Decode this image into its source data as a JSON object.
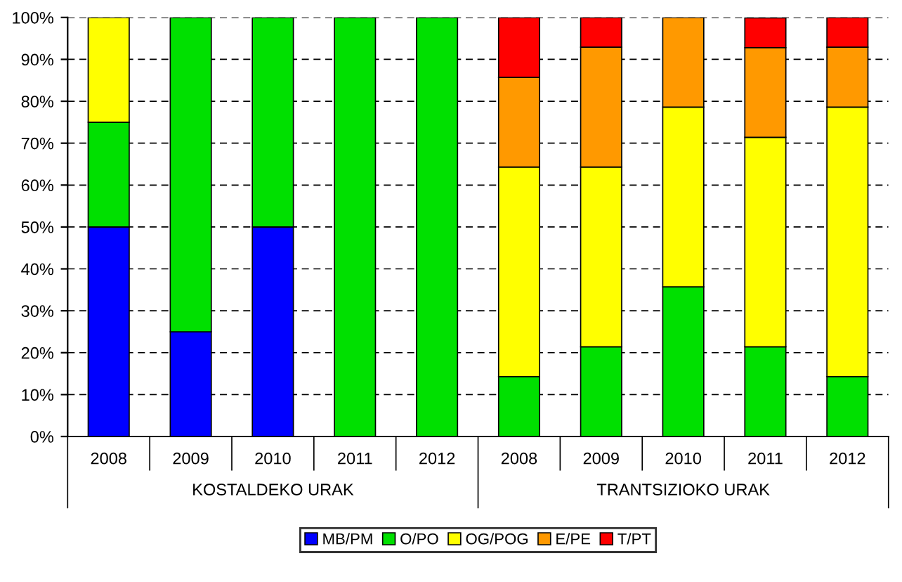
{
  "chart_data": {
    "type": "bar",
    "stacked": true,
    "categories": [
      "2008",
      "2009",
      "2010",
      "2011",
      "2012",
      "2008",
      "2009",
      "2010",
      "2011",
      "2012"
    ],
    "series": [
      {
        "name": "MB/PM",
        "color": "#0000ff",
        "values": [
          50,
          25,
          50,
          null,
          null,
          null,
          null,
          null,
          null,
          null
        ]
      },
      {
        "name": "O/PO",
        "color": "#00e000",
        "values": [
          25,
          75,
          50,
          100,
          100,
          14.3,
          21.4,
          35.7,
          21.4,
          14.3
        ]
      },
      {
        "name": "OG/POG",
        "color": "#ffff00",
        "values": [
          25,
          null,
          null,
          null,
          null,
          50,
          42.9,
          42.9,
          50,
          64.3
        ]
      },
      {
        "name": "E/PE",
        "color": "#ff9900",
        "values": [
          null,
          null,
          null,
          null,
          null,
          21.4,
          28.6,
          21.4,
          21.4,
          14.3
        ]
      },
      {
        "name": "T/PT",
        "color": "#ff0000",
        "values": [
          null,
          null,
          null,
          null,
          null,
          14.3,
          7.1,
          null,
          7.1,
          7.1
        ]
      }
    ],
    "ylim": [
      0,
      100
    ],
    "yticks": [
      {
        "value": 0,
        "label": "0%"
      },
      {
        "value": 10,
        "label": "10%"
      },
      {
        "value": 20,
        "label": "20%"
      },
      {
        "value": 30,
        "label": "30%"
      },
      {
        "value": 40,
        "label": "40%"
      },
      {
        "value": 50,
        "label": "50%"
      },
      {
        "value": 60,
        "label": "60%"
      },
      {
        "value": 70,
        "label": "70%"
      },
      {
        "value": 80,
        "label": "80%"
      },
      {
        "value": 90,
        "label": "90%"
      },
      {
        "value": 100,
        "label": "100%"
      }
    ],
    "grid": "y",
    "legend": "bottom",
    "annotations": [
      "KOSTALDEKO URAK",
      "TRANTSIZIOKO URAK"
    ]
  }
}
